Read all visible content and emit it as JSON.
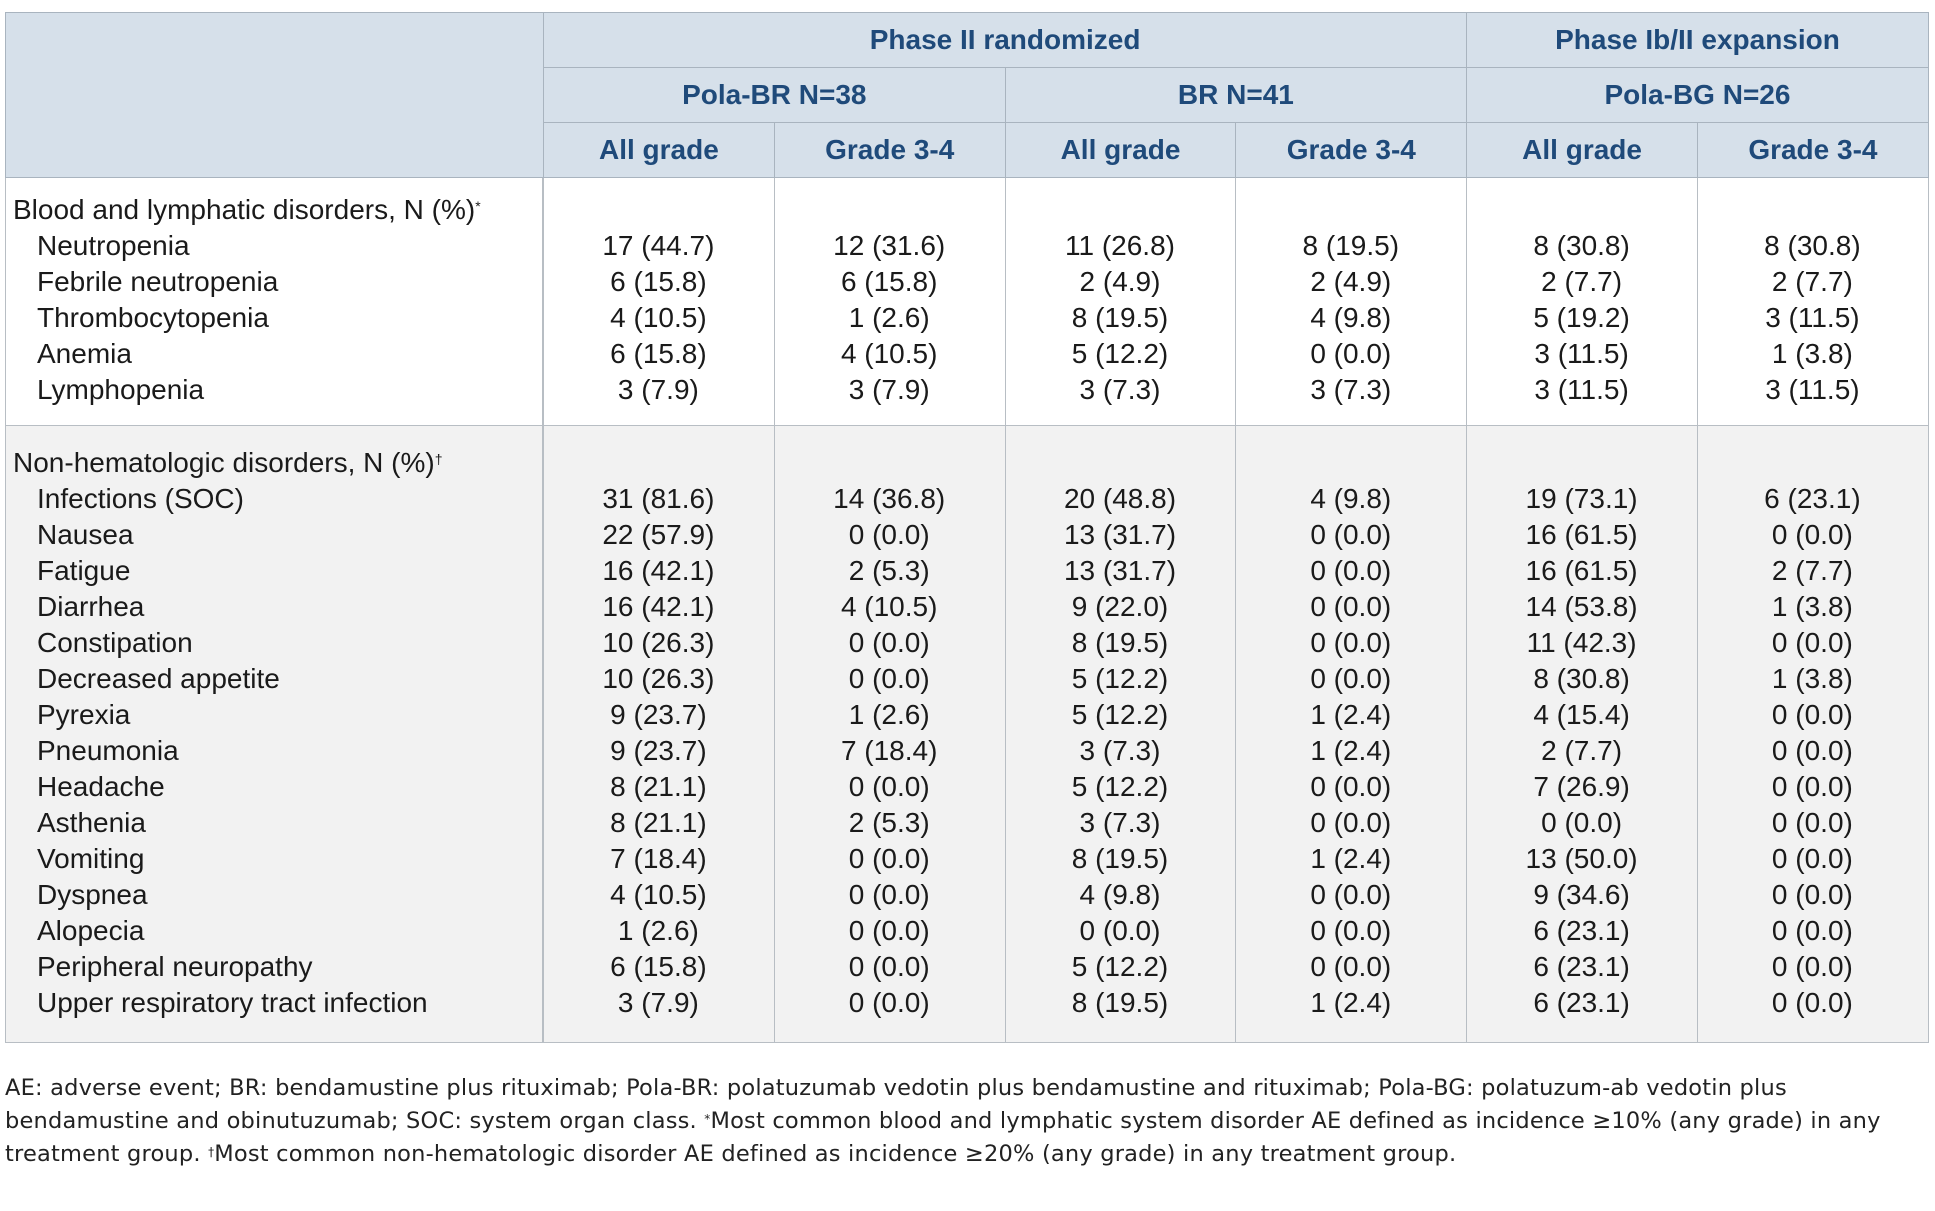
{
  "header": {
    "groups": [
      "Phase II randomized",
      "Phase Ib/II expansion"
    ],
    "arms": [
      "Pola-BR N=38",
      "BR N=41",
      "Pola-BG N=26"
    ],
    "grades": [
      "All grade",
      "Grade 3-4",
      "All grade",
      "Grade 3-4",
      "All grade",
      "Grade 3-4"
    ]
  },
  "sections": [
    {
      "title": "Blood and lymphatic disorders, N (%)",
      "title_mark": "*",
      "rows": [
        {
          "label": "Neutropenia",
          "values": [
            "17 (44.7)",
            "12 (31.6)",
            "11 (26.8)",
            "8 (19.5)",
            "8 (30.8)",
            "8 (30.8)"
          ]
        },
        {
          "label": "Febrile neutropenia",
          "values": [
            "6 (15.8)",
            "6 (15.8)",
            "2 (4.9)",
            "2 (4.9)",
            "2 (7.7)",
            "2 (7.7)"
          ]
        },
        {
          "label": "Thrombocytopenia",
          "values": [
            "4 (10.5)",
            "1 (2.6)",
            "8 (19.5)",
            "4 (9.8)",
            "5 (19.2)",
            "3 (11.5)"
          ]
        },
        {
          "label": "Anemia",
          "values": [
            "6 (15.8)",
            "4 (10.5)",
            "5 (12.2)",
            "0 (0.0)",
            "3 (11.5)",
            "1 (3.8)"
          ]
        },
        {
          "label": "Lymphopenia",
          "values": [
            "3 (7.9)",
            "3 (7.9)",
            "3 (7.3)",
            "3 (7.3)",
            "3 (11.5)",
            "3 (11.5)"
          ]
        }
      ]
    },
    {
      "title": "Non-hematologic disorders, N (%)",
      "title_mark": "†",
      "rows": [
        {
          "label": "Infections (SOC)",
          "values": [
            "31 (81.6)",
            "14 (36.8)",
            "20 (48.8)",
            "4 (9.8)",
            "19 (73.1)",
            "6 (23.1)"
          ]
        },
        {
          "label": "Nausea",
          "values": [
            "22 (57.9)",
            "0 (0.0)",
            "13 (31.7)",
            "0 (0.0)",
            "16 (61.5)",
            "0 (0.0)"
          ]
        },
        {
          "label": "Fatigue",
          "values": [
            "16 (42.1)",
            "2 (5.3)",
            "13 (31.7)",
            "0 (0.0)",
            "16 (61.5)",
            "2 (7.7)"
          ]
        },
        {
          "label": "Diarrhea",
          "values": [
            "16 (42.1)",
            "4 (10.5)",
            "9 (22.0)",
            "0 (0.0)",
            "14 (53.8)",
            "1 (3.8)"
          ]
        },
        {
          "label": "Constipation",
          "values": [
            "10 (26.3)",
            "0 (0.0)",
            "8 (19.5)",
            "0 (0.0)",
            "11 (42.3)",
            "0 (0.0)"
          ]
        },
        {
          "label": "Decreased appetite",
          "values": [
            "10 (26.3)",
            "0 (0.0)",
            "5 (12.2)",
            "0 (0.0)",
            "8 (30.8)",
            "1 (3.8)"
          ]
        },
        {
          "label": "Pyrexia",
          "values": [
            "9 (23.7)",
            "1 (2.6)",
            "5 (12.2)",
            "1 (2.4)",
            "4 (15.4)",
            "0 (0.0)"
          ]
        },
        {
          "label": "Pneumonia",
          "values": [
            "9 (23.7)",
            "7 (18.4)",
            "3 (7.3)",
            "1 (2.4)",
            "2 (7.7)",
            "0 (0.0)"
          ]
        },
        {
          "label": "Headache",
          "values": [
            "8 (21.1)",
            "0 (0.0)",
            "5 (12.2)",
            "0 (0.0)",
            "7 (26.9)",
            "0 (0.0)"
          ]
        },
        {
          "label": "Asthenia",
          "values": [
            "8 (21.1)",
            "2 (5.3)",
            "3 (7.3)",
            "0 (0.0)",
            "0 (0.0)",
            "0 (0.0)"
          ]
        },
        {
          "label": "Vomiting",
          "values": [
            "7 (18.4)",
            "0 (0.0)",
            "8 (19.5)",
            "1 (2.4)",
            "13 (50.0)",
            "0 (0.0)"
          ]
        },
        {
          "label": "Dyspnea",
          "values": [
            "4 (10.5)",
            "0 (0.0)",
            "4 (9.8)",
            "0 (0.0)",
            "9 (34.6)",
            "0 (0.0)"
          ]
        },
        {
          "label": "Alopecia",
          "values": [
            "1 (2.6)",
            "0 (0.0)",
            "0 (0.0)",
            "0 (0.0)",
            "6 (23.1)",
            "0 (0.0)"
          ]
        },
        {
          "label": "Peripheral neuropathy",
          "values": [
            "6 (15.8)",
            "0 (0.0)",
            "5 (12.2)",
            "0 (0.0)",
            "6 (23.1)",
            "0 (0.0)"
          ]
        },
        {
          "label": "Upper respiratory tract infection",
          "values": [
            "3 (7.9)",
            "0 (0.0)",
            "8 (19.5)",
            "1 (2.4)",
            "6 (23.1)",
            "0 (0.0)"
          ]
        }
      ]
    }
  ],
  "footnote": {
    "text_1": "AE: adverse event; BR: bendamustine plus rituximab; Pola-BR: polatuzumab vedotin plus bendamustine and rituximab; Pola-BG: polatuzum-ab vedotin plus bendamustine and obinutuzumab; SOC: system organ class. ",
    "mark_1": "*",
    "text_2": "Most common blood and lymphatic system disorder AE defined as incidence ≥10% (any grade) in any treatment group. ",
    "mark_2": "†",
    "text_3": "Most common non-hematologic disorder AE defined as incidence ≥20% (any grade) in any treatment group."
  }
}
